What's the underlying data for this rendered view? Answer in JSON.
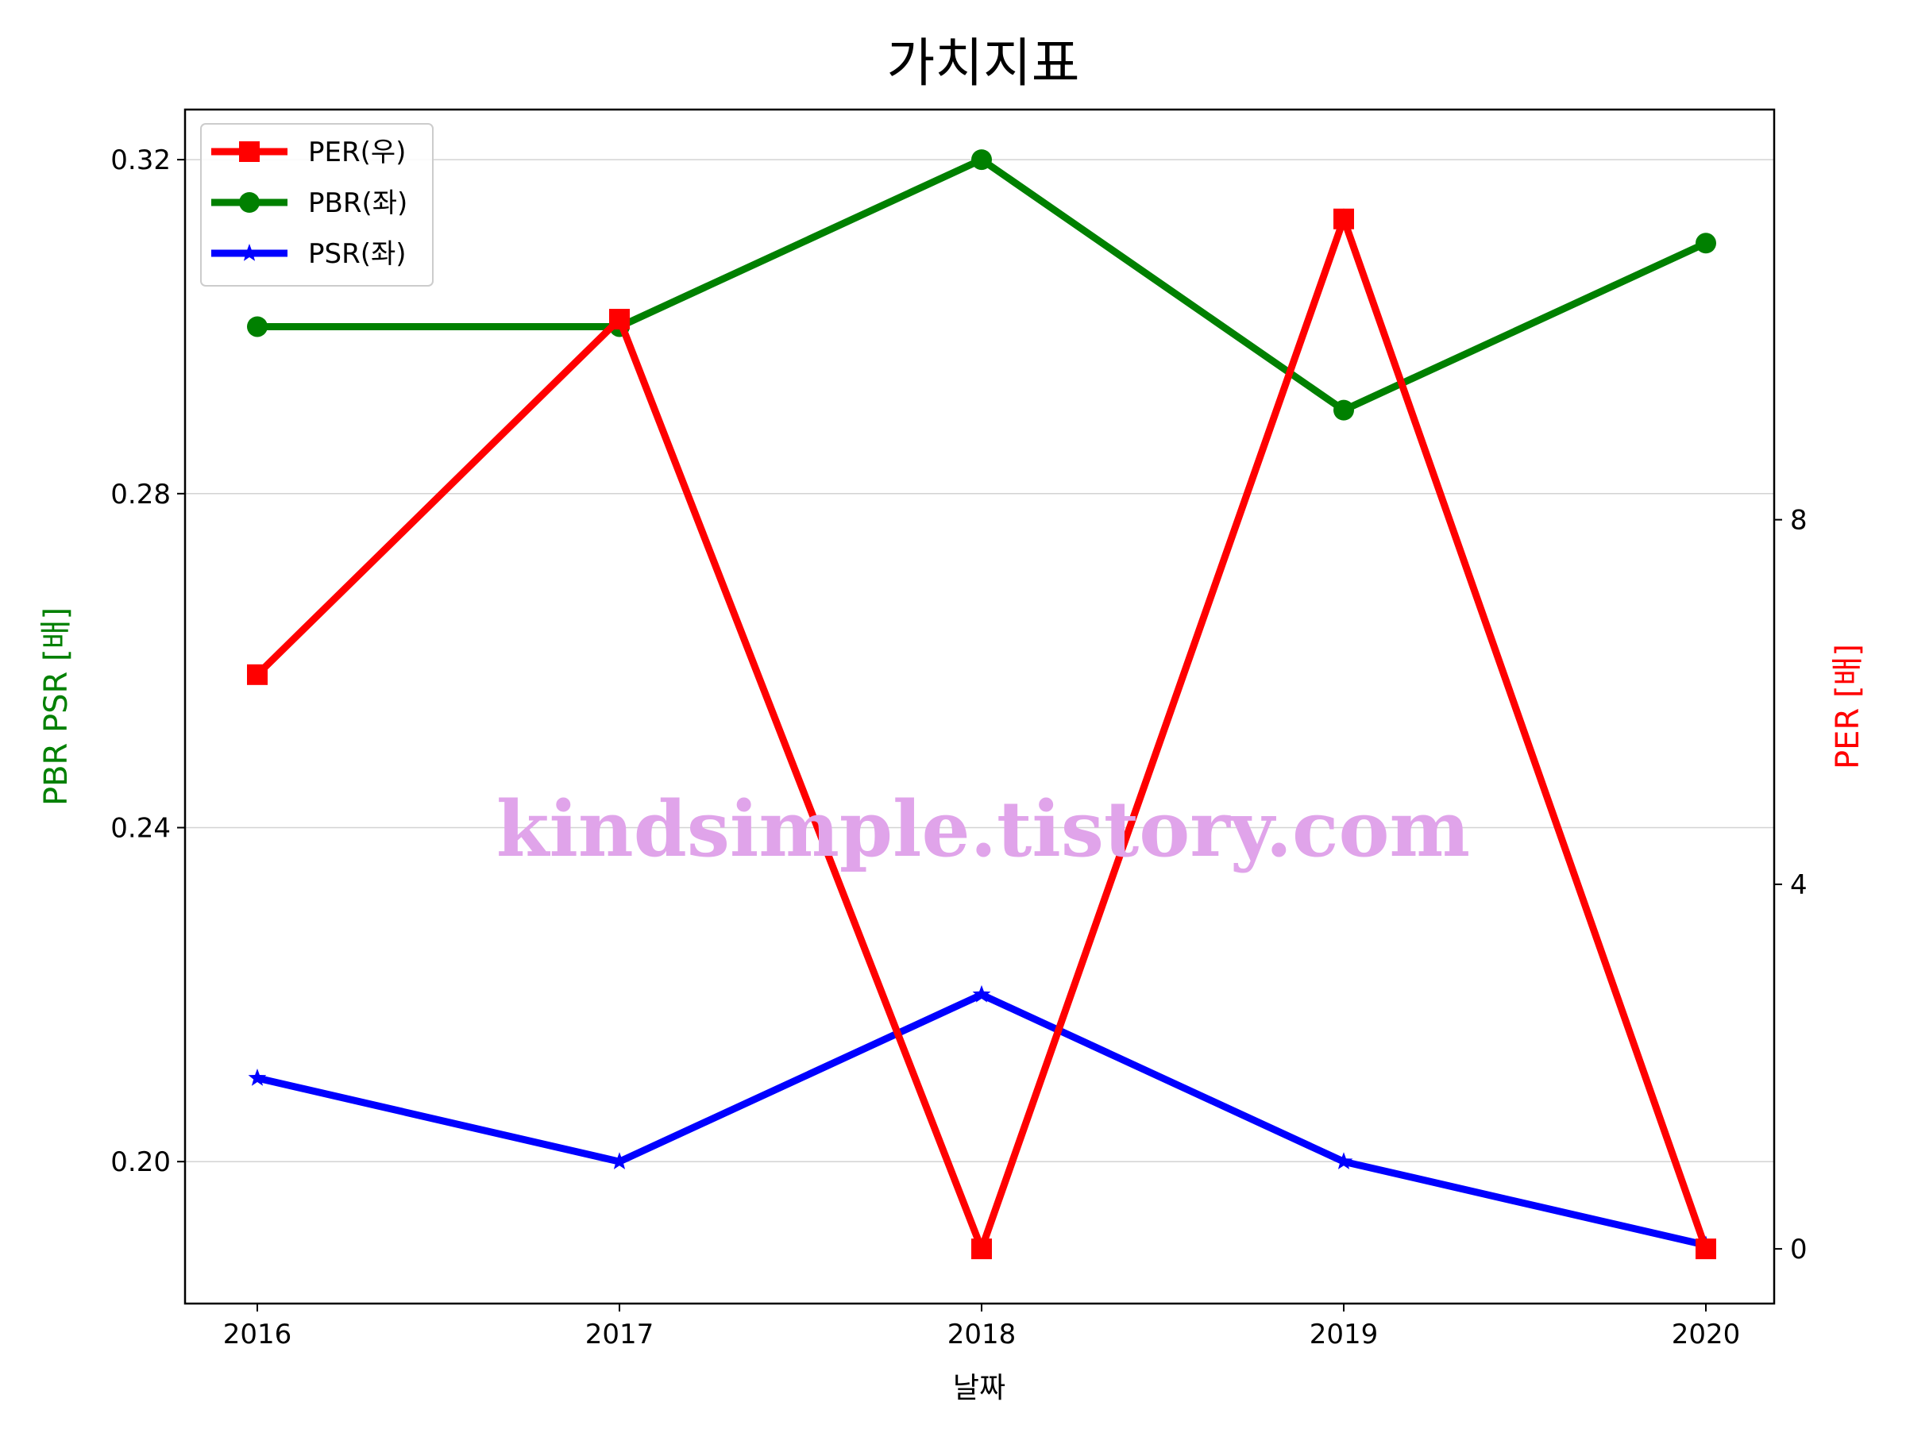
{
  "chart_data": {
    "type": "line",
    "title": "가치지표",
    "xlabel": "날짜",
    "ylabel_left": "PBR PSR [배]",
    "ylabel_right": "PER [배]",
    "categories": [
      "2016",
      "2017",
      "2018",
      "2019",
      "2020"
    ],
    "left_axis": {
      "ylim": [
        0.183,
        0.326
      ],
      "ticks": [
        0.2,
        0.24,
        0.28,
        0.32
      ],
      "tick_labels": [
        "0.20",
        "0.24",
        "0.28",
        "0.32"
      ],
      "grid": true
    },
    "right_axis": {
      "ylim": [
        -0.6,
        12.5
      ],
      "ticks": [
        0,
        4,
        8
      ],
      "tick_labels": [
        "0",
        "4",
        "8"
      ]
    },
    "series": [
      {
        "name": "PER(우)",
        "axis": "right",
        "color": "#ff0000",
        "marker": "square",
        "values": [
          6.3,
          10.2,
          0.0,
          11.3,
          0.0
        ]
      },
      {
        "name": "PBR(좌)",
        "axis": "left",
        "color": "#008000",
        "marker": "circle",
        "values": [
          0.3,
          0.3,
          0.32,
          0.29,
          0.31
        ]
      },
      {
        "name": "PSR(좌)",
        "axis": "left",
        "color": "#0000ff",
        "marker": "star",
        "values": [
          0.21,
          0.2,
          0.22,
          0.2,
          0.19
        ]
      }
    ],
    "legend_position": "top-left",
    "watermark": "kindsimple.tistory.com"
  }
}
